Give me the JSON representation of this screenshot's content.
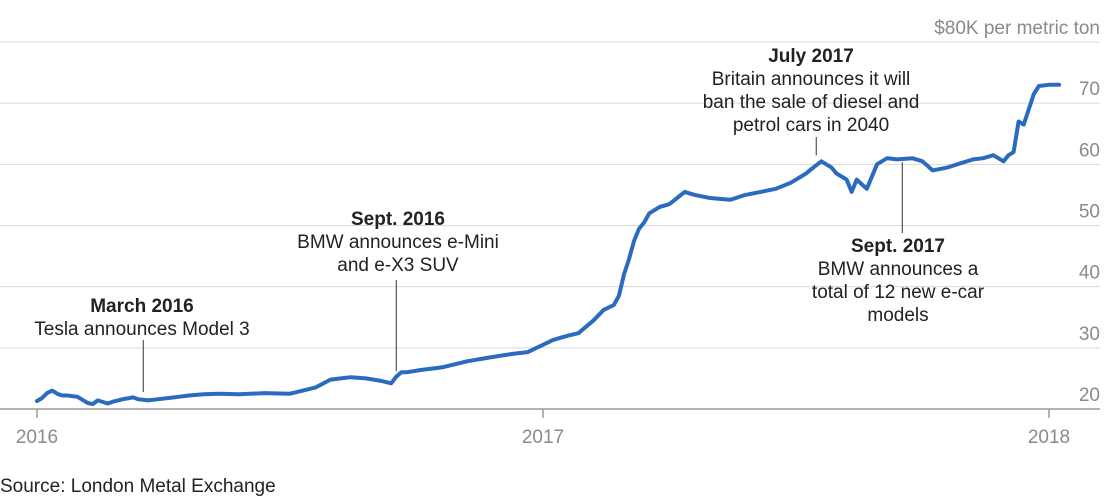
{
  "source": "Source: London Metal Exchange",
  "chart_data": {
    "type": "line",
    "title": "",
    "xlabel": "",
    "ylabel": "",
    "y_unit_label": "$80K per metric ton",
    "ylim": [
      15,
      80
    ],
    "xlim": [
      2016.0,
      2018.04
    ],
    "grid": true,
    "y_ticks": [
      {
        "value": 20,
        "label": "20"
      },
      {
        "value": 30,
        "label": "30"
      },
      {
        "value": 40,
        "label": "40"
      },
      {
        "value": 50,
        "label": "50"
      },
      {
        "value": 60,
        "label": "60"
      },
      {
        "value": 70,
        "label": "70"
      },
      {
        "value": 80,
        "label": "$80K per metric ton"
      }
    ],
    "x_ticks": [
      {
        "value": 2016.0,
        "label": "2016"
      },
      {
        "value": 2017.0,
        "label": "2017"
      },
      {
        "value": 2018.0,
        "label": "2018"
      }
    ],
    "series": [
      {
        "color": "#2b6bbf",
        "x": [
          2016.0,
          2016.01,
          2016.02,
          2016.03,
          2016.04,
          2016.05,
          2016.06,
          2016.08,
          2016.1,
          2016.11,
          2016.12,
          2016.14,
          2016.15,
          2016.17,
          2016.19,
          2016.2,
          2016.22,
          2016.24,
          2016.26,
          2016.28,
          2016.3,
          2016.33,
          2016.36,
          2016.4,
          2016.45,
          2016.5,
          2016.55,
          2016.58,
          2016.6,
          2016.62,
          2016.65,
          2016.68,
          2016.7,
          2016.71,
          2016.72,
          2016.73,
          2016.76,
          2016.8,
          2016.85,
          2016.9,
          2016.94,
          2016.97,
          2017.0,
          2017.02,
          2017.05,
          2017.07,
          2017.1,
          2017.12,
          2017.14,
          2017.15,
          2017.16,
          2017.17,
          2017.18,
          2017.19,
          2017.2,
          2017.21,
          2017.23,
          2017.25,
          2017.28,
          2017.3,
          2017.33,
          2017.37,
          2017.4,
          2017.43,
          2017.46,
          2017.49,
          2017.52,
          2017.53,
          2017.55,
          2017.57,
          2017.58,
          2017.6,
          2017.61,
          2017.62,
          2017.64,
          2017.66,
          2017.68,
          2017.7,
          2017.73,
          2017.75,
          2017.77,
          2017.8,
          2017.83,
          2017.85,
          2017.87,
          2017.89,
          2017.9,
          2017.91,
          2017.92,
          2017.93,
          2017.94,
          2017.95,
          2017.96,
          2017.97,
          2017.98,
          2018.0,
          2018.02
        ],
        "values": [
          21.3,
          21.8,
          22.6,
          23.0,
          22.5,
          22.2,
          22.2,
          22.0,
          21.0,
          20.8,
          21.4,
          20.9,
          21.2,
          21.6,
          21.9,
          21.6,
          21.4,
          21.6,
          21.8,
          22.0,
          22.2,
          22.4,
          22.5,
          22.4,
          22.6,
          22.5,
          23.5,
          24.8,
          25.0,
          25.2,
          25.0,
          24.6,
          24.2,
          25.3,
          26.0,
          26.0,
          26.4,
          26.8,
          27.8,
          28.5,
          29.0,
          29.3,
          30.5,
          31.3,
          32.0,
          32.4,
          34.5,
          36.2,
          37.0,
          38.5,
          42.0,
          44.5,
          47.5,
          49.5,
          50.5,
          52.0,
          53.0,
          53.5,
          55.5,
          55.0,
          54.5,
          54.2,
          55.0,
          55.5,
          56.0,
          57.0,
          58.5,
          59.2,
          60.5,
          59.5,
          58.5,
          57.5,
          55.5,
          57.5,
          56.0,
          60.0,
          61.0,
          60.8,
          61.0,
          60.5,
          59.0,
          59.5,
          60.3,
          60.8,
          61.0,
          61.5,
          61.0,
          60.5,
          61.5,
          62.0,
          67.0,
          66.5,
          69.0,
          71.5,
          72.8,
          73.0,
          73.0
        ]
      }
    ],
    "annotations": [
      {
        "title": "March 2016",
        "lines": [
          "Tesla announces Model 3"
        ],
        "x": 2016.21,
        "y": 21.8
      },
      {
        "title": "Sept. 2016",
        "lines": [
          "BMW announces e-Mini",
          "and e-X3 SUV"
        ],
        "x": 2016.71,
        "y": 25.2
      },
      {
        "title": "July 2017",
        "lines": [
          "Britain announces it will",
          "ban the sale of diesel and",
          "petrol cars in 2040"
        ],
        "x": 2017.54,
        "y": 60.5
      },
      {
        "title": "Sept. 2017",
        "lines": [
          "BMW announces a",
          "total of 12 new e-car",
          "models"
        ],
        "x": 2017.71,
        "y": 61.0
      }
    ]
  }
}
